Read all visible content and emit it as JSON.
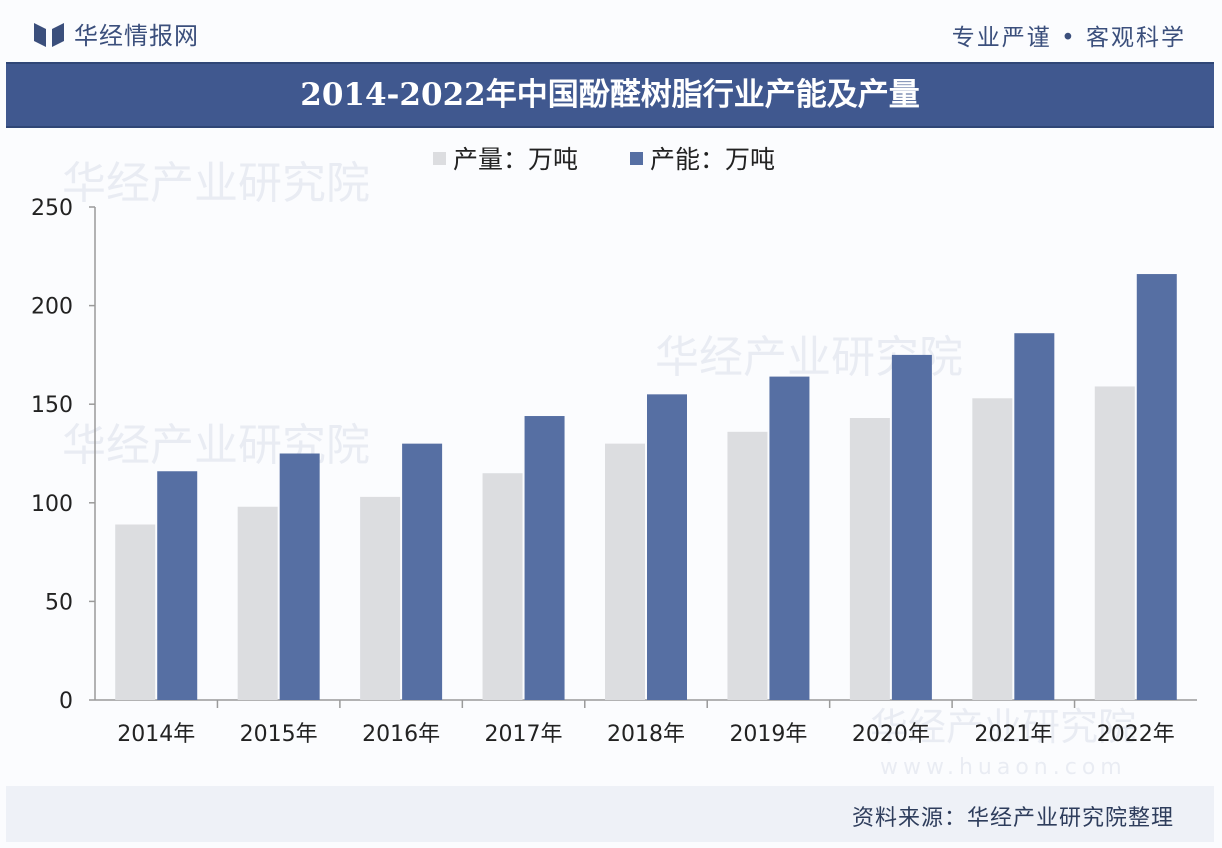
{
  "header": {
    "brand_name": "华经情报网",
    "slogan": "专业严谨 • 客观科学"
  },
  "footer": {
    "source": "资料来源：华经产业研究院整理"
  },
  "watermark": {
    "text": "华经产业研究院",
    "url": "www.huaon.com"
  },
  "colors": {
    "brand": "#40588f",
    "production": "#dcdde0",
    "capacity": "#566fa3"
  },
  "chart_data": {
    "type": "bar",
    "title": "2014-2022年中国酚醛树脂行业产能及产量",
    "categories": [
      "2014年",
      "2015年",
      "2016年",
      "2017年",
      "2018年",
      "2019年",
      "2020年",
      "2021年",
      "2022年"
    ],
    "series": [
      {
        "name": "产量：万吨",
        "values": [
          89,
          98,
          103,
          115,
          130,
          136,
          143,
          153,
          159
        ]
      },
      {
        "name": "产能：万吨",
        "values": [
          116,
          125,
          130,
          144,
          155,
          164,
          175,
          186,
          216
        ]
      }
    ],
    "ylim": [
      0,
      250
    ],
    "yticks": [
      0,
      50,
      100,
      150,
      200,
      250
    ],
    "grid": false,
    "legend": "top-left"
  }
}
